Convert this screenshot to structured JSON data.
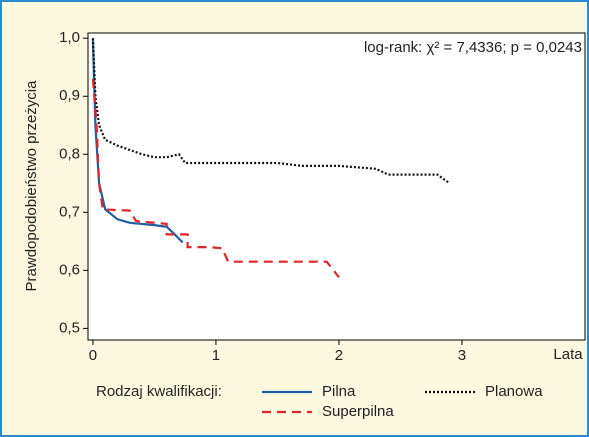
{
  "chart_data": {
    "type": "line",
    "annotation": "log-rank: χ² = 7,4336; p = 0,0243",
    "y_label": "Prawdopodobieństwo przeżycia",
    "x_label": "Lata",
    "legend_title": "Rodzaj kwalifikacji:",
    "xlim": [
      -0.04,
      4.0
    ],
    "ylim": [
      0.48,
      1.009
    ],
    "xticks": [
      0,
      1,
      2,
      3
    ],
    "yticks": [
      {
        "value": 1.0,
        "label": "1,0"
      },
      {
        "value": 0.9,
        "label": "0,9"
      },
      {
        "value": 0.8,
        "label": "0,8"
      },
      {
        "value": 0.7,
        "label": "0,7"
      },
      {
        "value": 0.6,
        "label": "0,6"
      },
      {
        "value": 0.5,
        "label": "0,5"
      }
    ],
    "series": [
      {
        "name": "Pilna",
        "color": "#1f5fa0",
        "style": "solid",
        "x": [
          0,
          0.02,
          0.05,
          0.1,
          0.2,
          0.3,
          0.5,
          0.6,
          0.65,
          0.73
        ],
        "values": [
          1.0,
          0.85,
          0.75,
          0.705,
          0.688,
          0.682,
          0.678,
          0.675,
          0.665,
          0.648
        ]
      },
      {
        "name": "Planowa",
        "color": "#111111",
        "style": "dotted",
        "x": [
          0,
          0.02,
          0.05,
          0.1,
          0.2,
          0.4,
          0.5,
          0.6,
          0.7,
          0.75,
          1.0,
          1.5,
          1.7,
          2.0,
          2.3,
          2.4,
          2.8,
          2.9
        ],
        "values": [
          1.0,
          0.9,
          0.85,
          0.825,
          0.815,
          0.8,
          0.795,
          0.795,
          0.8,
          0.785,
          0.785,
          0.785,
          0.78,
          0.78,
          0.775,
          0.765,
          0.765,
          0.75
        ]
      },
      {
        "name": "Superpilna",
        "color": "#e0262b",
        "style": "dashed",
        "x": [
          0,
          0.03,
          0.05,
          0.08,
          0.3,
          0.35,
          0.6,
          0.6,
          0.77,
          0.77,
          0.95,
          1.05,
          1.1,
          1.9,
          2.0
        ],
        "values": [
          0.93,
          0.85,
          0.75,
          0.705,
          0.703,
          0.685,
          0.68,
          0.662,
          0.662,
          0.64,
          0.64,
          0.638,
          0.615,
          0.615,
          0.588
        ]
      }
    ]
  }
}
